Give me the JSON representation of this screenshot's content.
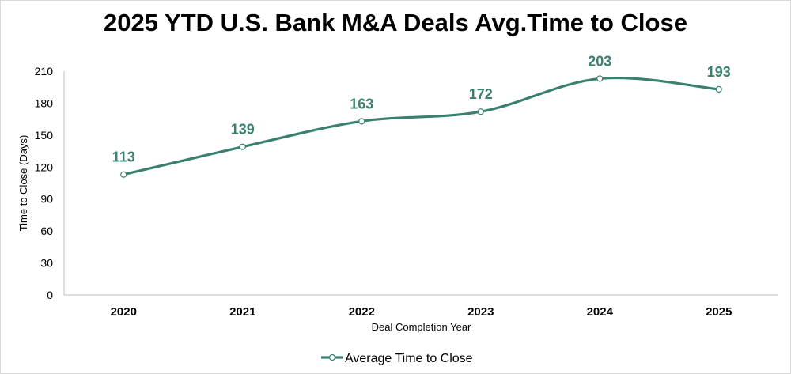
{
  "chart_data": {
    "type": "line",
    "title": "2025 YTD U.S. Bank M&A Deals Avg.Time to Close",
    "xlabel": "Deal Completion Year",
    "ylabel": "Time to Close (Days)",
    "categories": [
      "2020",
      "2021",
      "2022",
      "2023",
      "2024",
      "2025"
    ],
    "series": [
      {
        "name": "Average Time to Close",
        "values": [
          113,
          139,
          163,
          172,
          203,
          193
        ]
      }
    ],
    "ylim": [
      0,
      210
    ],
    "yticks": [
      "0",
      "30",
      "60",
      "90",
      "120",
      "150",
      "180",
      "210"
    ],
    "legend_position": "bottom",
    "line_color": "#3a8070",
    "grid": false
  }
}
